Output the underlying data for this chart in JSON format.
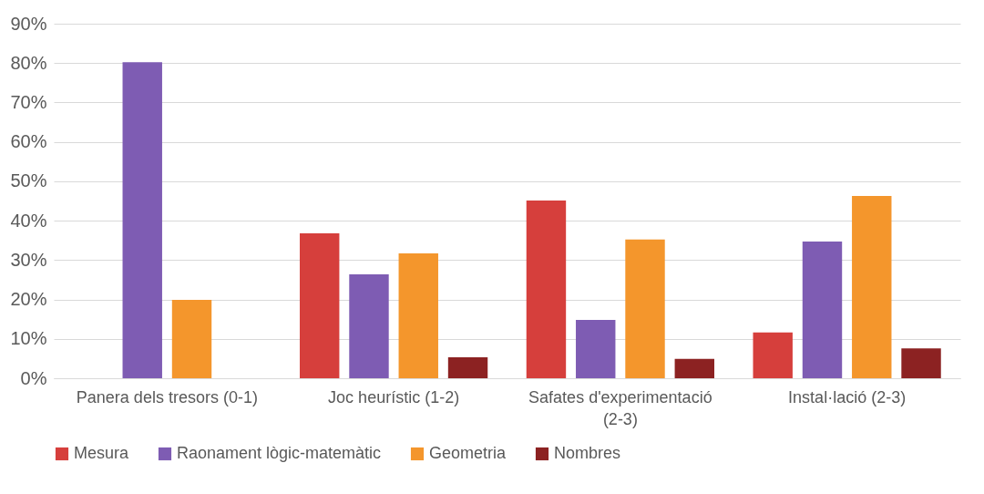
{
  "chart_data": {
    "type": "bar",
    "categories": [
      "Panera dels tresors (0-1)",
      "Joc heurístic (1-2)",
      "Safates d'experimentació (2-3)",
      "Instal·lació (2-3)"
    ],
    "series": [
      {
        "name": "Mesura",
        "color": "#d63f3c",
        "values": [
          0,
          36.8,
          45.1,
          11.6
        ]
      },
      {
        "name": "Raonament lògic-matemàtic",
        "color": "#7e5cb3",
        "values": [
          80.2,
          26.4,
          14.8,
          34.7
        ]
      },
      {
        "name": "Geometria",
        "color": "#f4962c",
        "values": [
          19.9,
          31.7,
          35.2,
          46.3
        ]
      },
      {
        "name": "Nombres",
        "color": "#8c2222",
        "values": [
          0,
          5.3,
          4.9,
          7.6
        ]
      }
    ],
    "ylim": [
      0,
      90
    ],
    "yticks": [
      {
        "value": 0,
        "label": "0%"
      },
      {
        "value": 10,
        "label": "10%"
      },
      {
        "value": 20,
        "label": "20%"
      },
      {
        "value": 30,
        "label": "30%"
      },
      {
        "value": 40,
        "label": "40%"
      },
      {
        "value": 50,
        "label": "50%"
      },
      {
        "value": 60,
        "label": "60%"
      },
      {
        "value": 70,
        "label": "70%"
      },
      {
        "value": 80,
        "label": "80%"
      },
      {
        "value": 90,
        "label": "90%"
      }
    ],
    "grid": "y",
    "legend": "bottom"
  }
}
